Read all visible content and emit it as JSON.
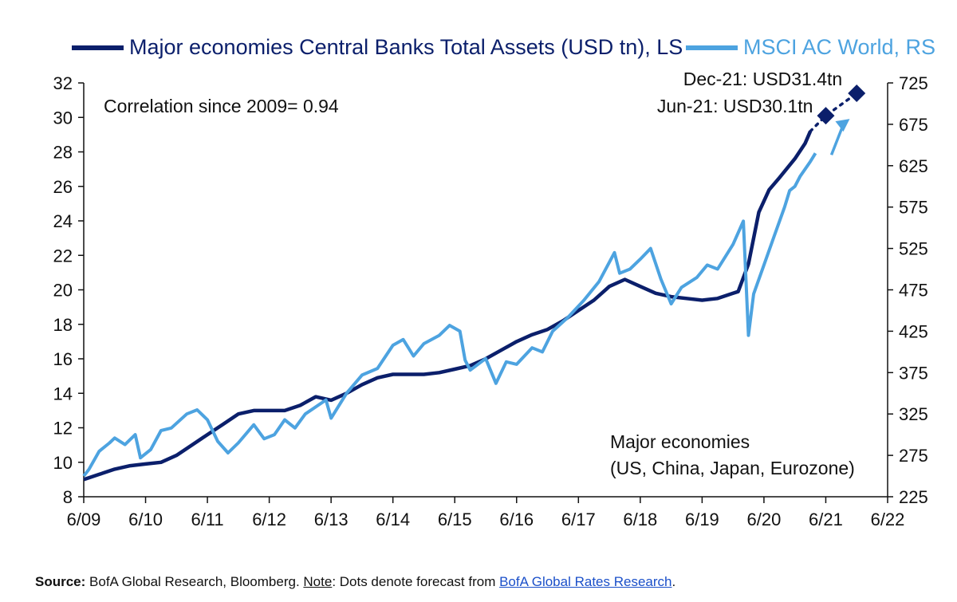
{
  "chart_data": {
    "type": "line",
    "x_ticks": [
      "6/09",
      "6/10",
      "6/11",
      "6/12",
      "6/13",
      "6/14",
      "6/15",
      "6/16",
      "6/17",
      "6/18",
      "6/19",
      "6/20",
      "6/21",
      "6/22"
    ],
    "y_left": {
      "ticks": [
        8,
        10,
        12,
        14,
        16,
        18,
        20,
        22,
        24,
        26,
        28,
        30,
        32
      ],
      "range": [
        8,
        32
      ]
    },
    "y_right": {
      "ticks": [
        225,
        275,
        325,
        375,
        425,
        475,
        525,
        575,
        625,
        675,
        725
      ],
      "range": [
        225,
        725
      ]
    },
    "series": [
      {
        "name": "Major economies Central Banks Total Assets (USD tn), LS",
        "axis": "left",
        "color": "#0b1f6b",
        "points": [
          [
            "2009-06",
            9.0
          ],
          [
            "2009-09",
            9.3
          ],
          [
            "2009-12",
            9.6
          ],
          [
            "2010-03",
            9.8
          ],
          [
            "2010-06",
            9.9
          ],
          [
            "2010-09",
            10.0
          ],
          [
            "2010-12",
            10.4
          ],
          [
            "2011-03",
            11.0
          ],
          [
            "2011-06",
            11.6
          ],
          [
            "2011-09",
            12.2
          ],
          [
            "2011-12",
            12.8
          ],
          [
            "2012-03",
            13.0
          ],
          [
            "2012-06",
            13.0
          ],
          [
            "2012-09",
            13.0
          ],
          [
            "2012-12",
            13.3
          ],
          [
            "2013-03",
            13.8
          ],
          [
            "2013-06",
            13.6
          ],
          [
            "2013-09",
            14.0
          ],
          [
            "2013-12",
            14.5
          ],
          [
            "2014-03",
            14.9
          ],
          [
            "2014-06",
            15.1
          ],
          [
            "2014-09",
            15.1
          ],
          [
            "2014-12",
            15.1
          ],
          [
            "2015-03",
            15.2
          ],
          [
            "2015-06",
            15.4
          ],
          [
            "2015-09",
            15.6
          ],
          [
            "2015-12",
            16.0
          ],
          [
            "2016-03",
            16.5
          ],
          [
            "2016-06",
            17.0
          ],
          [
            "2016-09",
            17.4
          ],
          [
            "2016-12",
            17.7
          ],
          [
            "2017-03",
            18.2
          ],
          [
            "2017-06",
            18.8
          ],
          [
            "2017-09",
            19.4
          ],
          [
            "2017-12",
            20.2
          ],
          [
            "2018-03",
            20.6
          ],
          [
            "2018-06",
            20.2
          ],
          [
            "2018-09",
            19.8
          ],
          [
            "2018-12",
            19.6
          ],
          [
            "2019-03",
            19.5
          ],
          [
            "2019-06",
            19.4
          ],
          [
            "2019-09",
            19.5
          ],
          [
            "2019-12",
            19.8
          ],
          [
            "2020-01",
            19.9
          ],
          [
            "2020-03",
            21.5
          ],
          [
            "2020-05",
            24.5
          ],
          [
            "2020-07",
            25.8
          ],
          [
            "2020-09",
            26.5
          ],
          [
            "2020-12",
            27.6
          ],
          [
            "2021-02",
            28.5
          ],
          [
            "2021-03",
            29.2
          ]
        ]
      },
      {
        "name": "MSCI AC World, RS",
        "axis": "right",
        "color": "#4da3e0",
        "points": [
          [
            "2009-06",
            250
          ],
          [
            "2009-07",
            258
          ],
          [
            "2009-09",
            280
          ],
          [
            "2009-11",
            290
          ],
          [
            "2009-12",
            296
          ],
          [
            "2010-02",
            288
          ],
          [
            "2010-04",
            300
          ],
          [
            "2010-05",
            272
          ],
          [
            "2010-07",
            282
          ],
          [
            "2010-09",
            305
          ],
          [
            "2010-11",
            308
          ],
          [
            "2011-02",
            325
          ],
          [
            "2011-04",
            330
          ],
          [
            "2011-06",
            318
          ],
          [
            "2011-08",
            292
          ],
          [
            "2011-10",
            278
          ],
          [
            "2011-12",
            290
          ],
          [
            "2012-03",
            312
          ],
          [
            "2012-05",
            295
          ],
          [
            "2012-07",
            300
          ],
          [
            "2012-09",
            318
          ],
          [
            "2012-11",
            308
          ],
          [
            "2013-01",
            325
          ],
          [
            "2013-05",
            342
          ],
          [
            "2013-06",
            320
          ],
          [
            "2013-09",
            350
          ],
          [
            "2013-12",
            372
          ],
          [
            "2014-03",
            380
          ],
          [
            "2014-06",
            408
          ],
          [
            "2014-08",
            415
          ],
          [
            "2014-10",
            395
          ],
          [
            "2014-12",
            410
          ],
          [
            "2015-03",
            420
          ],
          [
            "2015-05",
            432
          ],
          [
            "2015-07",
            425
          ],
          [
            "2015-08",
            390
          ],
          [
            "2015-09",
            378
          ],
          [
            "2015-12",
            392
          ],
          [
            "2016-02",
            362
          ],
          [
            "2016-04",
            388
          ],
          [
            "2016-06",
            385
          ],
          [
            "2016-09",
            405
          ],
          [
            "2016-11",
            400
          ],
          [
            "2017-01",
            425
          ],
          [
            "2017-04",
            442
          ],
          [
            "2017-07",
            462
          ],
          [
            "2017-10",
            485
          ],
          [
            "2018-01",
            520
          ],
          [
            "2018-02",
            495
          ],
          [
            "2018-04",
            500
          ],
          [
            "2018-06",
            512
          ],
          [
            "2018-08",
            525
          ],
          [
            "2018-10",
            488
          ],
          [
            "2018-12",
            458
          ],
          [
            "2019-02",
            478
          ],
          [
            "2019-05",
            490
          ],
          [
            "2019-07",
            505
          ],
          [
            "2019-09",
            500
          ],
          [
            "2019-12",
            530
          ],
          [
            "2020-02",
            558
          ],
          [
            "2020-03",
            420
          ],
          [
            "2020-04",
            470
          ],
          [
            "2020-06",
            505
          ],
          [
            "2020-08",
            540
          ],
          [
            "2020-10",
            575
          ],
          [
            "2020-11",
            595
          ],
          [
            "2020-12",
            600
          ],
          [
            "2021-01",
            612
          ],
          [
            "2021-03",
            630
          ],
          [
            "2021-04",
            640
          ]
        ]
      }
    ],
    "forecast_points": [
      {
        "label": "Jun-21: USD30.1tn",
        "x": "2021-06",
        "value": 30.1
      },
      {
        "label": "Dec-21: USD31.4tn",
        "x": "2021-12",
        "value": 31.4
      }
    ],
    "legend_placement": "top",
    "grid": false
  },
  "annotations": {
    "correlation": "Correlation since 2009= 0.94",
    "region_line1": "Major economies",
    "region_line2": "(US, China, Japan, Eurozone)"
  },
  "footnote": {
    "source_label": "Source:",
    "source_text": " BofA Global Research, Bloomberg. ",
    "note_label": "Note",
    "note_text": ": Dots denote forecast from ",
    "link_text": "BofA Global Rates Research",
    "end": "."
  }
}
